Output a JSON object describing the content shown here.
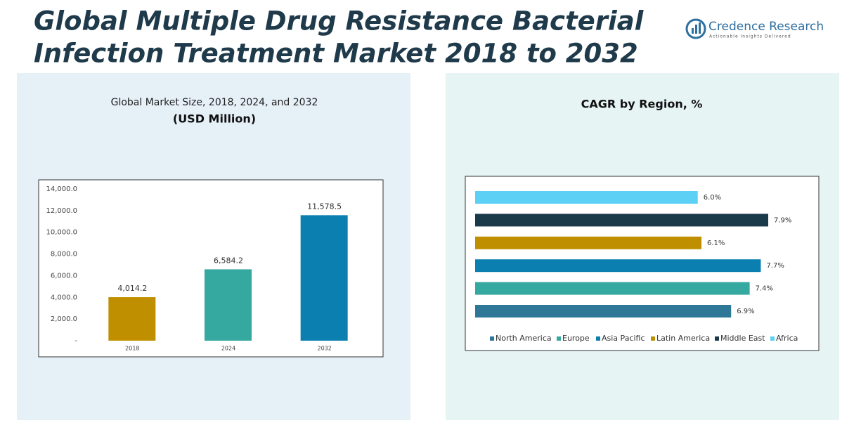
{
  "header": {
    "title_line1": "Global Multiple Drug Resistance Bacterial",
    "title_line2": "Infection Treatment Market 2018 to 2032",
    "logo_name": "Credence Research",
    "logo_tagline": "Actionable Insights Delivered"
  },
  "chart_data": [
    {
      "type": "bar",
      "title": "Global Market Size, 2018, 2024, and 2032",
      "subtitle": "(USD Million)",
      "categories": [
        "2018",
        "2024",
        "2032"
      ],
      "values": [
        4014.2,
        6584.2,
        11578.5
      ],
      "value_labels": [
        "4,014.2",
        "6,584.2",
        "11,578.5"
      ],
      "colors": [
        "#c08f00",
        "#35a8a0",
        "#0a7fb0"
      ],
      "ylim": [
        0,
        14000
      ],
      "yticks": [
        {
          "value": 0,
          "label": "-"
        },
        {
          "value": 2000,
          "label": "2,000.0"
        },
        {
          "value": 4000,
          "label": "4,000.0"
        },
        {
          "value": 6000,
          "label": "6,000.0"
        },
        {
          "value": 8000,
          "label": "8,000.0"
        },
        {
          "value": 10000,
          "label": "10,000.0"
        },
        {
          "value": 12000,
          "label": "12,000.0"
        },
        {
          "value": 14000,
          "label": "14,000.0"
        }
      ]
    },
    {
      "type": "hbar",
      "title": "CAGR by Region, %",
      "categories": [
        "North America",
        "Europe",
        "Asia Pacific",
        "Latin America",
        "Middle East",
        "Africa"
      ],
      "values": [
        6.9,
        7.4,
        7.7,
        6.1,
        7.9,
        6.0
      ],
      "value_labels": [
        "6.9%",
        "7.4%",
        "7.7%",
        "6.1%",
        "7.9%",
        "6.0%"
      ],
      "colors": [
        "#2e7797",
        "#35a8a0",
        "#0a7fb0",
        "#c08f00",
        "#1a3a4a",
        "#5dd0f5"
      ],
      "legend": "bottom"
    }
  ]
}
